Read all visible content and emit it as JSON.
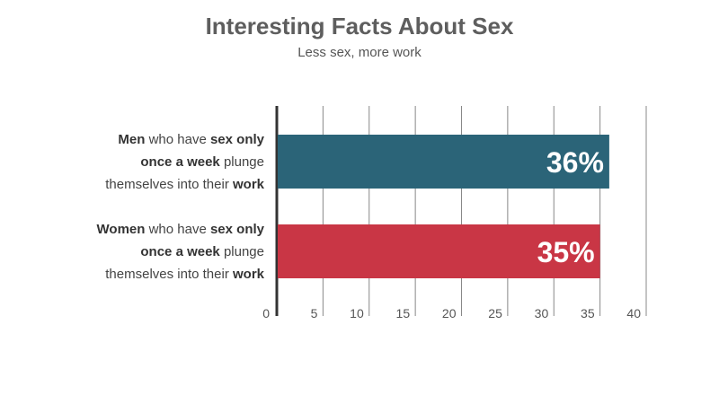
{
  "chart_data": {
    "type": "bar",
    "orientation": "horizontal",
    "title": "Interesting Facts About Sex",
    "subtitle": "Less sex, more work",
    "categories": [
      [
        {
          "text": "Men",
          "bold": true
        },
        {
          "text": " who have ",
          "bold": false
        },
        {
          "text": "sex only",
          "bold": true
        },
        {
          "text": "\n",
          "bold": false
        },
        {
          "text": "once a week",
          "bold": true
        },
        {
          "text": " plunge",
          "bold": false
        },
        {
          "text": "\n",
          "bold": false
        },
        {
          "text": "themselves into their ",
          "bold": false
        },
        {
          "text": "work",
          "bold": true
        }
      ],
      [
        {
          "text": "Women",
          "bold": true
        },
        {
          "text": " who have ",
          "bold": false
        },
        {
          "text": "sex only",
          "bold": true
        },
        {
          "text": "\n",
          "bold": false
        },
        {
          "text": "once a week",
          "bold": true
        },
        {
          "text": " plunge",
          "bold": false
        },
        {
          "text": "\n",
          "bold": false
        },
        {
          "text": "themselves into their ",
          "bold": false
        },
        {
          "text": "work",
          "bold": true
        }
      ]
    ],
    "values": [
      36,
      35
    ],
    "data_labels": [
      "36%",
      "35%"
    ],
    "colors": [
      "#2b6478",
      "#c93645"
    ],
    "xlim": [
      0,
      40
    ],
    "xticks": [
      0,
      5,
      10,
      15,
      20,
      25,
      30,
      35,
      40
    ],
    "xtick_labels": [
      "0",
      "5",
      "10",
      "15",
      "20",
      "25",
      "30",
      "35",
      "40"
    ],
    "grid": true,
    "grid_color": "#888888",
    "axis_color": "#333333"
  }
}
